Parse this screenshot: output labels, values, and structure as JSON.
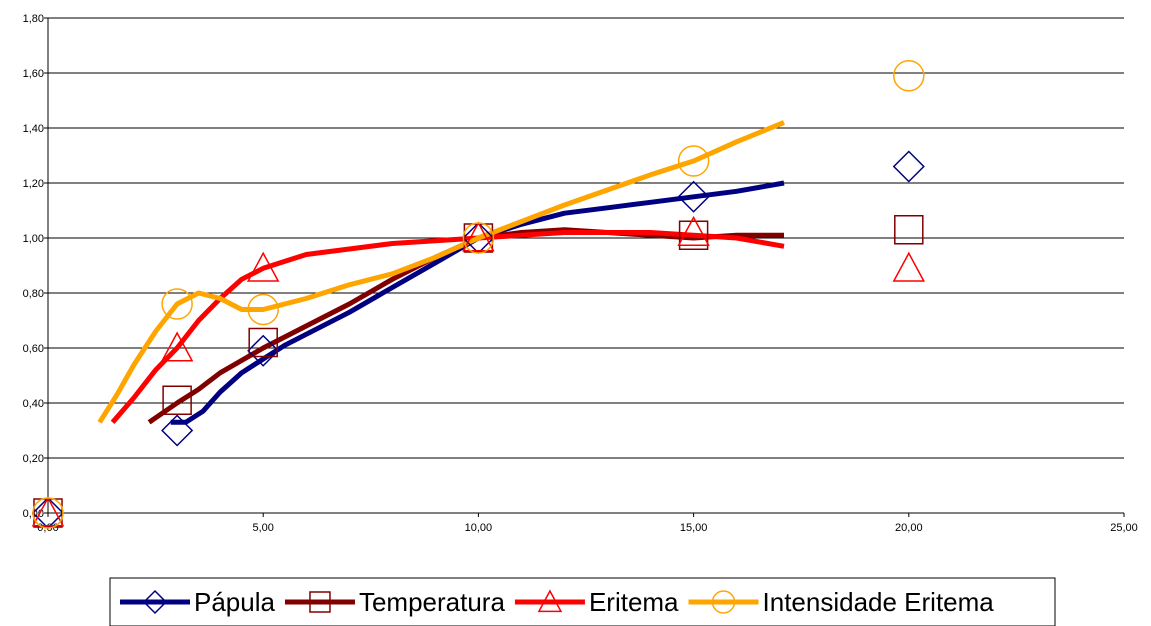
{
  "chart_data": {
    "type": "scatter",
    "x_ticks": [
      "0,00",
      "5,00",
      "10,00",
      "15,00",
      "20,00",
      "25,00"
    ],
    "y_ticks": [
      "0,00",
      "0,20",
      "0,40",
      "0,60",
      "0,80",
      "1,00",
      "1,20",
      "1,40",
      "1,60",
      "1,80"
    ],
    "xlim": [
      0,
      25
    ],
    "ylim": [
      0,
      1.8
    ],
    "grid": "horizontal",
    "legend_position": "bottom",
    "series": [
      {
        "name": "Pápula",
        "color": "#000080",
        "marker": "diamond",
        "points": [
          [
            0,
            0
          ],
          [
            3,
            0.3
          ],
          [
            5,
            0.59
          ],
          [
            10,
            1.0
          ],
          [
            15,
            1.15
          ],
          [
            20,
            1.26
          ]
        ],
        "trend": [
          [
            2.85,
            0.33
          ],
          [
            3.2,
            0.33
          ],
          [
            3.6,
            0.37
          ],
          [
            4,
            0.44
          ],
          [
            4.5,
            0.51
          ],
          [
            5,
            0.56
          ],
          [
            5.5,
            0.61
          ],
          [
            6,
            0.65
          ],
          [
            7,
            0.73
          ],
          [
            8,
            0.82
          ],
          [
            9,
            0.91
          ],
          [
            10,
            1.0
          ],
          [
            11,
            1.05
          ],
          [
            12,
            1.09
          ],
          [
            13,
            1.11
          ],
          [
            14,
            1.13
          ],
          [
            15,
            1.15
          ],
          [
            16,
            1.17
          ],
          [
            17.1,
            1.2
          ]
        ]
      },
      {
        "name": "Temperatura",
        "color": "#800000",
        "marker": "square",
        "points": [
          [
            0,
            0
          ],
          [
            3,
            0.41
          ],
          [
            5,
            0.62
          ],
          [
            10,
            1.0
          ],
          [
            15,
            1.01
          ],
          [
            20,
            1.03
          ]
        ],
        "trend": [
          [
            2.35,
            0.33
          ],
          [
            3,
            0.4
          ],
          [
            3.5,
            0.45
          ],
          [
            4,
            0.51
          ],
          [
            5,
            0.6
          ],
          [
            6,
            0.68
          ],
          [
            7,
            0.76
          ],
          [
            8,
            0.85
          ],
          [
            9,
            0.93
          ],
          [
            10,
            1.0
          ],
          [
            11,
            1.02
          ],
          [
            12,
            1.03
          ],
          [
            13,
            1.02
          ],
          [
            14,
            1.01
          ],
          [
            15,
            1.0
          ],
          [
            16,
            1.01
          ],
          [
            17.1,
            1.01
          ]
        ]
      },
      {
        "name": "Eritema",
        "color": "#ff0000",
        "marker": "triangle",
        "points": [
          [
            0,
            0
          ],
          [
            3,
            0.6
          ],
          [
            5,
            0.89
          ],
          [
            10,
            1.0
          ],
          [
            15,
            1.02
          ],
          [
            20,
            0.89
          ]
        ],
        "trend": [
          [
            1.5,
            0.33
          ],
          [
            2,
            0.42
          ],
          [
            2.5,
            0.52
          ],
          [
            3,
            0.6
          ],
          [
            3.5,
            0.7
          ],
          [
            4,
            0.78
          ],
          [
            4.5,
            0.85
          ],
          [
            5,
            0.89
          ],
          [
            6,
            0.94
          ],
          [
            7,
            0.96
          ],
          [
            8,
            0.98
          ],
          [
            9,
            0.99
          ],
          [
            10,
            1.0
          ],
          [
            11,
            1.01
          ],
          [
            12,
            1.02
          ],
          [
            13,
            1.02
          ],
          [
            14,
            1.02
          ],
          [
            15,
            1.01
          ],
          [
            16,
            1.0
          ],
          [
            17.1,
            0.97
          ]
        ]
      },
      {
        "name": "Intensidade Eritema",
        "color": "#ffa500",
        "marker": "circle",
        "points": [
          [
            0,
            0
          ],
          [
            3,
            0.76
          ],
          [
            5,
            0.74
          ],
          [
            10,
            1.0
          ],
          [
            15,
            1.28
          ],
          [
            20,
            1.59
          ]
        ],
        "trend": [
          [
            1.2,
            0.33
          ],
          [
            1.6,
            0.43
          ],
          [
            2,
            0.54
          ],
          [
            2.5,
            0.66
          ],
          [
            3,
            0.76
          ],
          [
            3.5,
            0.8
          ],
          [
            4,
            0.78
          ],
          [
            4.5,
            0.74
          ],
          [
            5,
            0.74
          ],
          [
            6,
            0.78
          ],
          [
            7,
            0.83
          ],
          [
            8,
            0.87
          ],
          [
            9,
            0.93
          ],
          [
            10,
            1.0
          ],
          [
            12,
            1.12
          ],
          [
            14,
            1.23
          ],
          [
            15,
            1.28
          ],
          [
            16,
            1.35
          ],
          [
            17.1,
            1.42
          ]
        ]
      }
    ]
  }
}
